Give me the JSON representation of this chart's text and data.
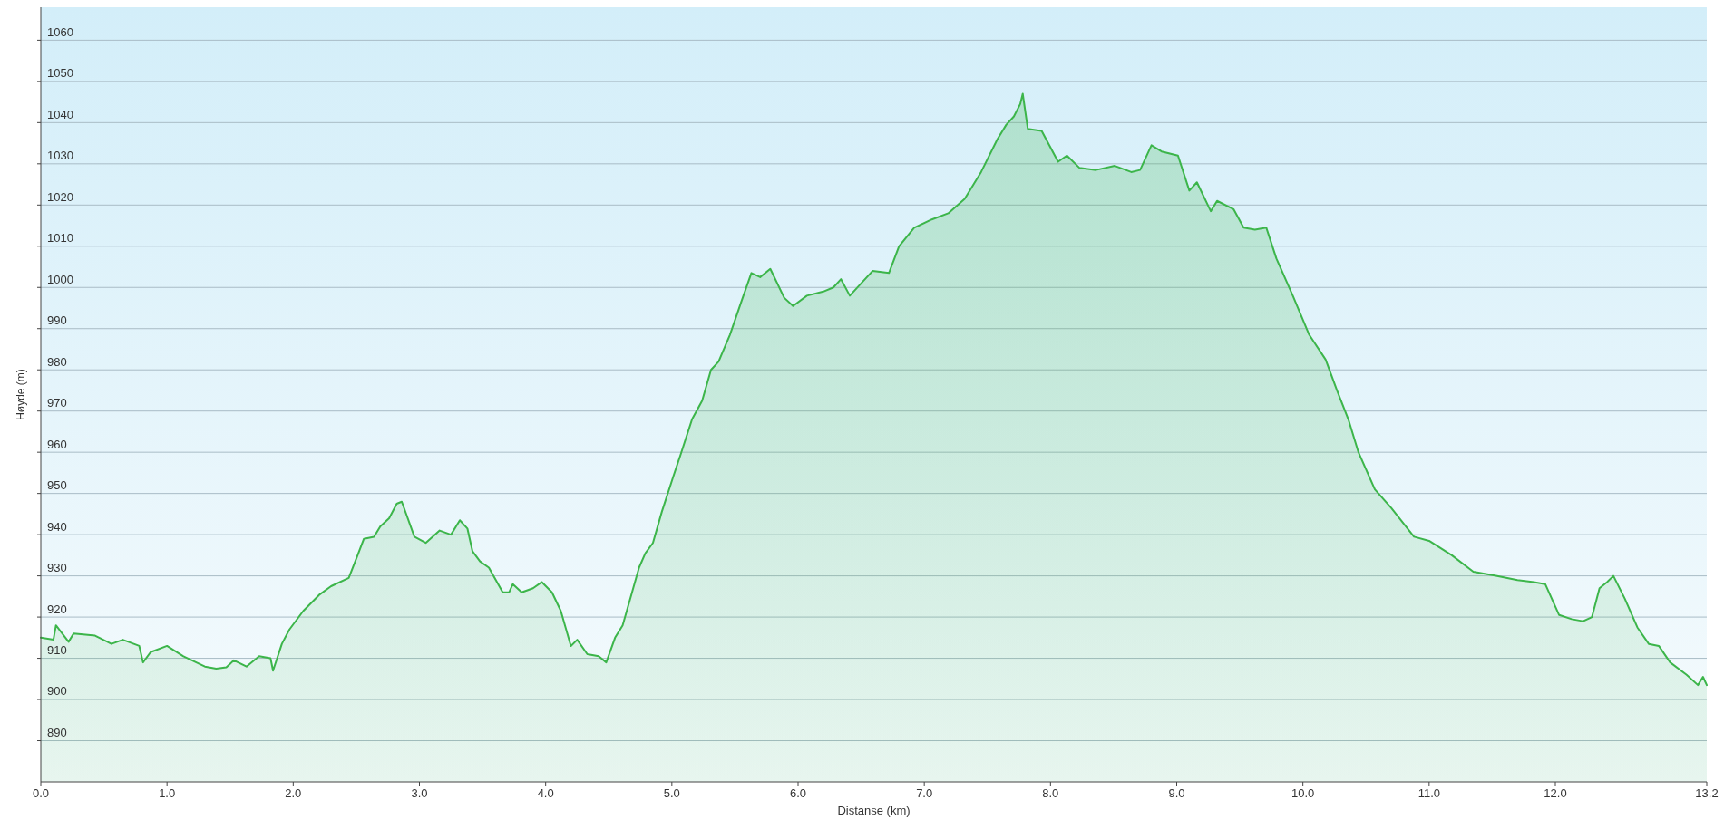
{
  "chart_data": {
    "type": "area",
    "xlabel": "Distanse  (km)",
    "ylabel": "Høyde (m)",
    "xlim": [
      0,
      13.2
    ],
    "ylim": [
      880,
      1068
    ],
    "xticks": [
      {
        "value": 0,
        "label": "0.0"
      },
      {
        "value": 1,
        "label": "1.0"
      },
      {
        "value": 2,
        "label": "2.0"
      },
      {
        "value": 3,
        "label": "3.0"
      },
      {
        "value": 4,
        "label": "4.0"
      },
      {
        "value": 5,
        "label": "5.0"
      },
      {
        "value": 6,
        "label": "6.0"
      },
      {
        "value": 7,
        "label": "7.0"
      },
      {
        "value": 8,
        "label": "8.0"
      },
      {
        "value": 9,
        "label": "9.0"
      },
      {
        "value": 10,
        "label": "10.0"
      },
      {
        "value": 11,
        "label": "11.0"
      },
      {
        "value": 12,
        "label": "12.0"
      },
      {
        "value": 13.2,
        "label": "13.2"
      }
    ],
    "yticks": [
      890,
      900,
      910,
      920,
      930,
      940,
      950,
      960,
      970,
      980,
      990,
      1000,
      1010,
      1020,
      1030,
      1040,
      1050,
      1060
    ],
    "grid": "y",
    "marker": "none",
    "line_style": "solid",
    "series": [
      {
        "color": "#3cb54a",
        "x": [
          0,
          0.1,
          0.12,
          0.22,
          0.26,
          0.43,
          0.56,
          0.65,
          0.78,
          0.81,
          0.87,
          1.0,
          1.13,
          1.3,
          1.39,
          1.47,
          1.53,
          1.63,
          1.73,
          1.82,
          1.84,
          1.91,
          1.97,
          2.08,
          2.21,
          2.3,
          2.44,
          2.51,
          2.56,
          2.64,
          2.69,
          2.76,
          2.82,
          2.86,
          2.96,
          3.05,
          3.16,
          3.25,
          3.32,
          3.38,
          3.42,
          3.48,
          3.55,
          3.66,
          3.71,
          3.74,
          3.81,
          3.9,
          3.97,
          4.05,
          4.12,
          4.2,
          4.25,
          4.33,
          4.42,
          4.48,
          4.55,
          4.61,
          4.68,
          4.74,
          4.79,
          4.85,
          4.92,
          5.01,
          5.07,
          5.16,
          5.24,
          5.31,
          5.37,
          5.46,
          5.55,
          5.63,
          5.7,
          5.78,
          5.89,
          5.96,
          6.07,
          6.2,
          6.28,
          6.34,
          6.41,
          6.59,
          6.72,
          6.8,
          6.92,
          7.06,
          7.19,
          7.32,
          7.45,
          7.58,
          7.65,
          7.71,
          7.76,
          7.78,
          7.82,
          7.93,
          8.06,
          8.13,
          8.23,
          8.36,
          8.51,
          8.64,
          8.71,
          8.8,
          8.88,
          9.01,
          9.1,
          9.16,
          9.27,
          9.32,
          9.45,
          9.53,
          9.62,
          9.71,
          9.79,
          9.92,
          10.05,
          10.18,
          10.27,
          10.36,
          10.44,
          10.57,
          10.7,
          10.88,
          11.0,
          11.18,
          11.35,
          11.53,
          11.7,
          11.83,
          11.92,
          12.03,
          12.13,
          12.22,
          12.29,
          12.35,
          12.41,
          12.46,
          12.55,
          12.65,
          12.74,
          12.82,
          12.91,
          13.04,
          13.13,
          13.17,
          13.2
        ],
        "values": [
          915,
          914.5,
          918,
          914,
          916,
          915.5,
          913.5,
          914.5,
          913,
          909,
          911.5,
          913,
          910.5,
          908,
          907.5,
          907.8,
          909.5,
          908,
          910.5,
          910,
          907,
          913.5,
          917,
          921.5,
          925.5,
          927.5,
          929.5,
          935,
          939,
          939.5,
          942,
          944,
          947.5,
          948,
          939.5,
          938,
          941,
          940,
          943.5,
          941.5,
          936,
          933.5,
          932,
          926,
          926,
          928,
          926,
          927,
          928.5,
          926,
          921.5,
          913,
          914.5,
          911,
          910.5,
          909,
          915,
          918,
          925.5,
          932,
          935.5,
          938,
          945.5,
          954,
          959.5,
          968,
          972.5,
          980,
          982,
          988.5,
          996.5,
          1003.5,
          1002.5,
          1004.5,
          997.5,
          995.5,
          998,
          999,
          1000,
          1002,
          998,
          1004,
          1003.5,
          1010,
          1014.5,
          1016.5,
          1018,
          1021.5,
          1028,
          1036,
          1039.5,
          1041.5,
          1044.5,
          1047,
          1038.5,
          1038,
          1030.5,
          1032,
          1029,
          1028.5,
          1029.5,
          1028,
          1028.5,
          1034.5,
          1033,
          1032,
          1023.5,
          1025.5,
          1018.5,
          1021,
          1019,
          1014.5,
          1014,
          1014.5,
          1007,
          998,
          988.5,
          982.5,
          975,
          968,
          960,
          951,
          946.5,
          939.5,
          938.5,
          935,
          931,
          930,
          929,
          928.5,
          928,
          920.5,
          919.5,
          919,
          920,
          927,
          928.5,
          930,
          924.5,
          917.5,
          913.5,
          913,
          909,
          906,
          903.5,
          905.5,
          903.5
        ]
      }
    ]
  }
}
